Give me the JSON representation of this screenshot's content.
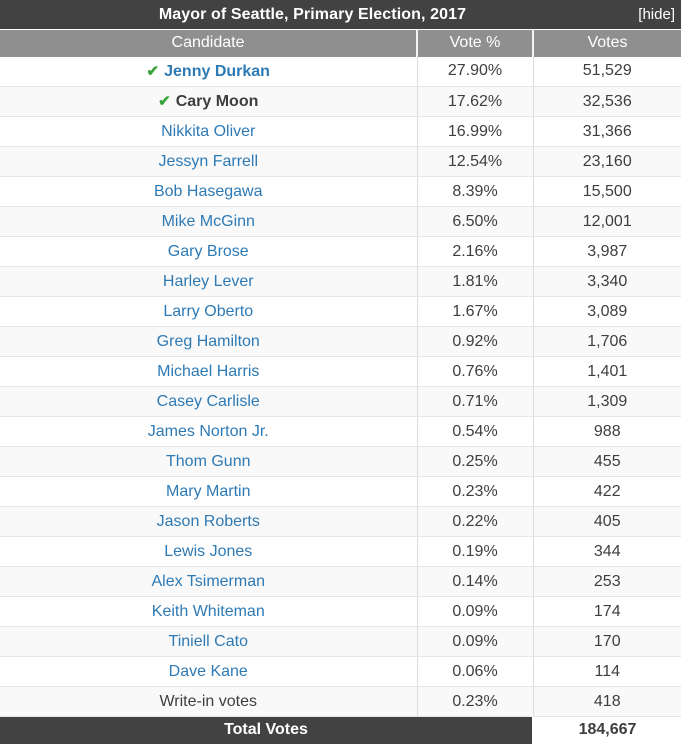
{
  "title_bar": {
    "title": "Mayor of Seattle, Primary Election, 2017",
    "hide_label": "[hide]"
  },
  "icons": {
    "winner_check": "✔"
  },
  "colors": {
    "header_bg": "#424242",
    "subheader_bg": "#8f8f8f",
    "link_blue": "#2e7ab5",
    "check_green": "#3aa33a",
    "alt_row_bg": "#f9f9f9",
    "text": "#3e3e3e"
  },
  "table": {
    "columns": [
      "Candidate",
      "Vote %",
      "Votes"
    ],
    "rows": [
      {
        "name": "Jenny Durkan",
        "vote_pct": "27.90%",
        "votes": "51,529",
        "winner": true,
        "link": true,
        "bold": true
      },
      {
        "name": "Cary Moon",
        "vote_pct": "17.62%",
        "votes": "32,536",
        "winner": true,
        "link": false,
        "bold": true
      },
      {
        "name": "Nikkita Oliver",
        "vote_pct": "16.99%",
        "votes": "31,366",
        "winner": false,
        "link": true,
        "bold": false
      },
      {
        "name": "Jessyn Farrell",
        "vote_pct": "12.54%",
        "votes": "23,160",
        "winner": false,
        "link": true,
        "bold": false
      },
      {
        "name": "Bob Hasegawa",
        "vote_pct": "8.39%",
        "votes": "15,500",
        "winner": false,
        "link": true,
        "bold": false
      },
      {
        "name": "Mike McGinn",
        "vote_pct": "6.50%",
        "votes": "12,001",
        "winner": false,
        "link": true,
        "bold": false
      },
      {
        "name": "Gary Brose",
        "vote_pct": "2.16%",
        "votes": "3,987",
        "winner": false,
        "link": true,
        "bold": false
      },
      {
        "name": "Harley Lever",
        "vote_pct": "1.81%",
        "votes": "3,340",
        "winner": false,
        "link": true,
        "bold": false
      },
      {
        "name": "Larry Oberto",
        "vote_pct": "1.67%",
        "votes": "3,089",
        "winner": false,
        "link": true,
        "bold": false
      },
      {
        "name": "Greg Hamilton",
        "vote_pct": "0.92%",
        "votes": "1,706",
        "winner": false,
        "link": true,
        "bold": false
      },
      {
        "name": "Michael Harris",
        "vote_pct": "0.76%",
        "votes": "1,401",
        "winner": false,
        "link": true,
        "bold": false
      },
      {
        "name": "Casey Carlisle",
        "vote_pct": "0.71%",
        "votes": "1,309",
        "winner": false,
        "link": true,
        "bold": false
      },
      {
        "name": "James Norton Jr.",
        "vote_pct": "0.54%",
        "votes": "988",
        "winner": false,
        "link": true,
        "bold": false
      },
      {
        "name": "Thom Gunn",
        "vote_pct": "0.25%",
        "votes": "455",
        "winner": false,
        "link": true,
        "bold": false
      },
      {
        "name": "Mary Martin",
        "vote_pct": "0.23%",
        "votes": "422",
        "winner": false,
        "link": true,
        "bold": false
      },
      {
        "name": "Jason Roberts",
        "vote_pct": "0.22%",
        "votes": "405",
        "winner": false,
        "link": true,
        "bold": false
      },
      {
        "name": "Lewis Jones",
        "vote_pct": "0.19%",
        "votes": "344",
        "winner": false,
        "link": true,
        "bold": false
      },
      {
        "name": "Alex Tsimerman",
        "vote_pct": "0.14%",
        "votes": "253",
        "winner": false,
        "link": true,
        "bold": false
      },
      {
        "name": "Keith Whiteman",
        "vote_pct": "0.09%",
        "votes": "174",
        "winner": false,
        "link": true,
        "bold": false
      },
      {
        "name": "Tiniell Cato",
        "vote_pct": "0.09%",
        "votes": "170",
        "winner": false,
        "link": true,
        "bold": false
      },
      {
        "name": "Dave Kane",
        "vote_pct": "0.06%",
        "votes": "114",
        "winner": false,
        "link": true,
        "bold": false
      },
      {
        "name": "Write-in votes",
        "vote_pct": "0.23%",
        "votes": "418",
        "winner": false,
        "link": false,
        "bold": false
      }
    ],
    "total": {
      "label": "Total Votes",
      "votes": "184,667"
    }
  }
}
